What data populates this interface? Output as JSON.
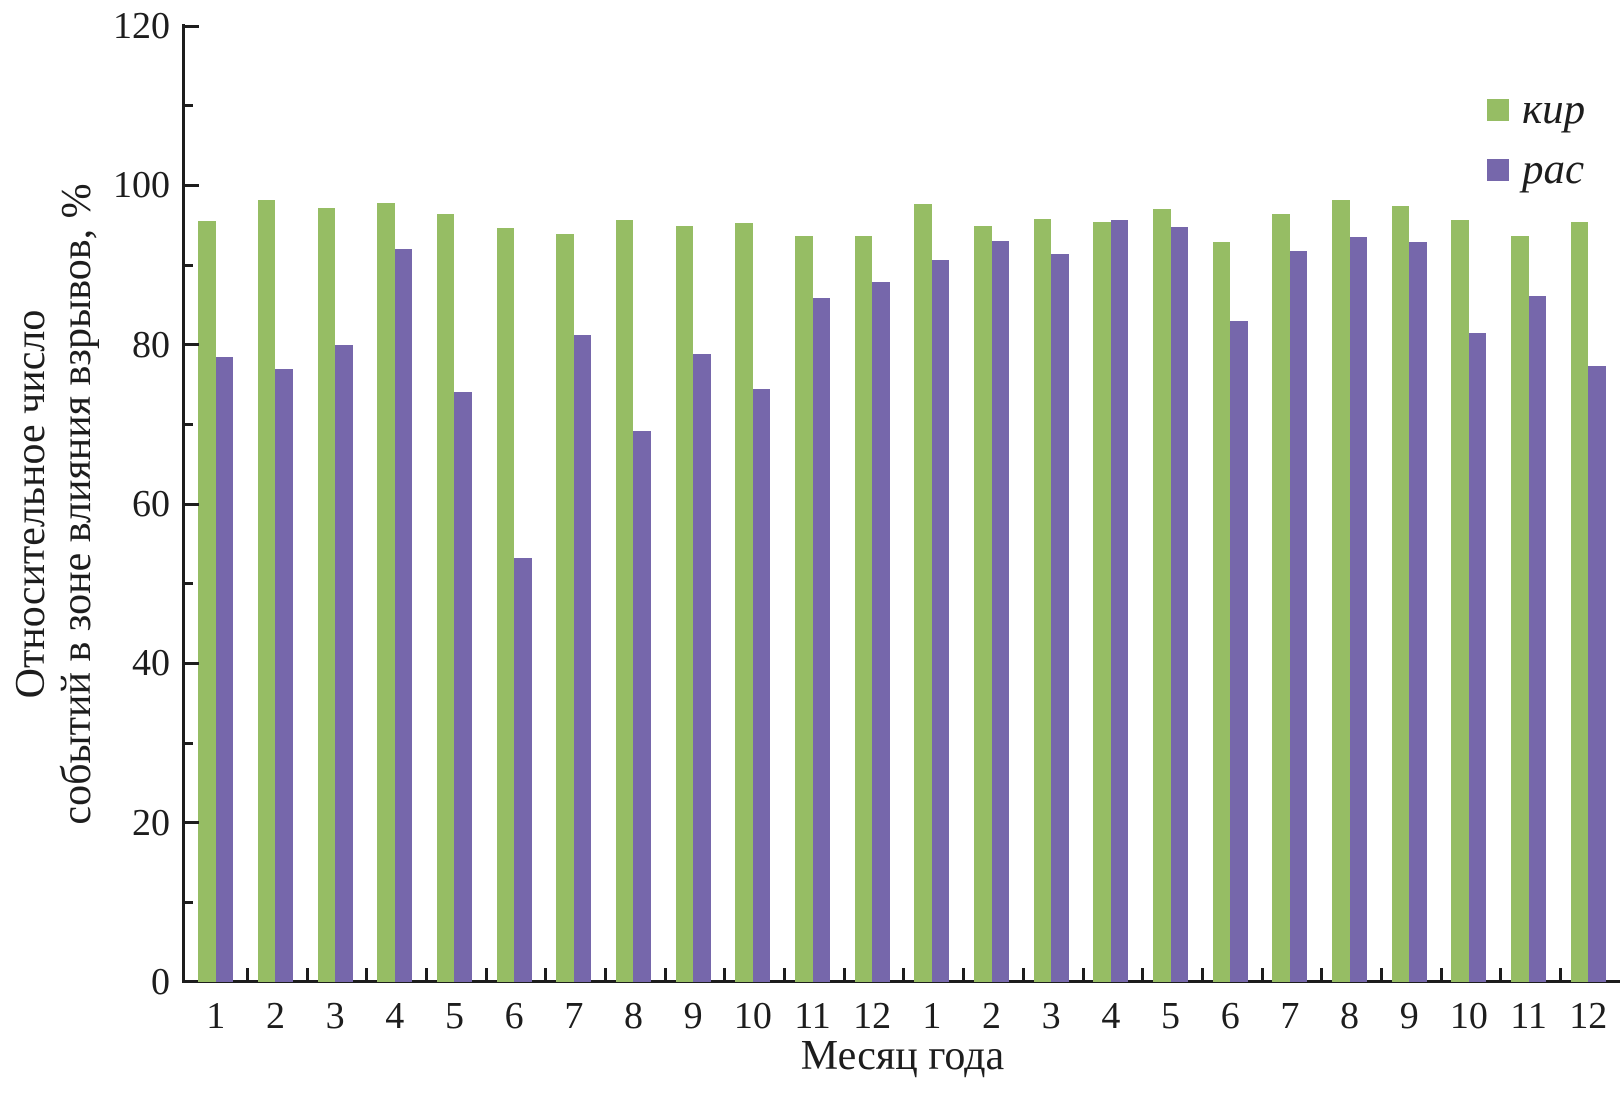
{
  "chart_data": {
    "type": "bar",
    "title": "",
    "xlabel": "Месяц года",
    "ylabel": "Относительное число событий в зоне влияния взрывов, %",
    "ylabel_lines": [
      "Относительное число",
      "событий в зоне влияния взрывов, %"
    ],
    "categories": [
      "1",
      "2",
      "3",
      "4",
      "5",
      "6",
      "7",
      "8",
      "9",
      "10",
      "11",
      "12",
      "1",
      "2",
      "3",
      "4",
      "5",
      "6",
      "7",
      "8",
      "9",
      "10",
      "11",
      "12"
    ],
    "series": [
      {
        "name": "кир",
        "color": "#96bd64",
        "values": [
          95.5,
          98.1,
          97.1,
          97.8,
          96.4,
          94.7,
          93.9,
          95.7,
          94.9,
          95.3,
          93.7,
          93.7,
          97.6,
          94.9,
          95.8,
          95.4,
          97.0,
          92.9,
          96.4,
          98.1,
          97.4,
          95.6,
          93.6,
          95.4
        ]
      },
      {
        "name": "рас",
        "color": "#7667ab",
        "values": [
          78.4,
          77.0,
          80.0,
          92.0,
          74.1,
          53.2,
          81.2,
          69.2,
          78.8,
          74.4,
          85.8,
          87.9,
          90.6,
          93.0,
          91.4,
          95.7,
          94.8,
          83.0,
          91.7,
          93.5,
          92.9,
          81.5,
          86.1,
          77.3
        ]
      }
    ],
    "ylim": [
      0,
      120
    ],
    "yticks_major": [
      0,
      20,
      40,
      60,
      80,
      100,
      120
    ],
    "yticks_minor": [
      10,
      30,
      50,
      70,
      90,
      110
    ],
    "grid": false,
    "legend_position": "top-right",
    "colors": {
      "axis": "#1d1d1d",
      "background": "#ffffff"
    }
  }
}
